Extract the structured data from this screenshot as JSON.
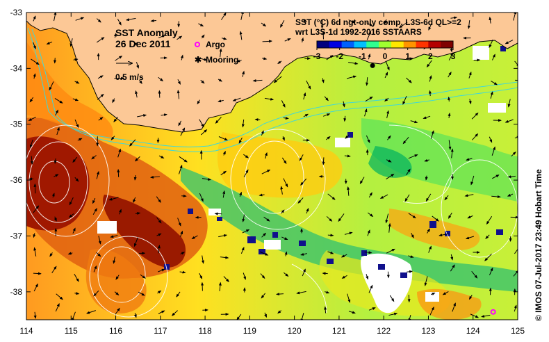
{
  "title": "SST Anomaly",
  "date": "26 Dec 2011",
  "vector_scale_label": "0.5 m/s",
  "legend": {
    "argo_label": "Argo",
    "mooring_label": "Mooring",
    "argo_color": "#ff00ff",
    "mooring_color": "#000000"
  },
  "colorbar": {
    "title_line1": "SST (°C) 6d ngt-only comp, L3S-6d QL>=2",
    "title_line2": "wrt L3S-1d 1992-2016 SSTAARS",
    "min": -3,
    "max": 3,
    "ticks": [
      "-3",
      "-2",
      "-1",
      "0",
      "1",
      "2",
      "3"
    ],
    "colors": [
      "#00007f",
      "#0000e0",
      "#0060ff",
      "#00c0ff",
      "#30ff90",
      "#a0ff30",
      "#ffe800",
      "#ff9400",
      "#ff3300",
      "#b40000",
      "#7f0000"
    ]
  },
  "axes": {
    "lon_ticks": [
      "114",
      "115",
      "116",
      "117",
      "118",
      "119",
      "120",
      "121",
      "122",
      "123",
      "124",
      "125"
    ],
    "lat_ticks": [
      "-33",
      "-34",
      "-35",
      "-36",
      "-37",
      "-38"
    ],
    "lon_range": [
      114,
      125
    ],
    "lat_range": [
      -38.5,
      -33
    ]
  },
  "markers": {
    "argo": [
      [
        124.45,
        -38.36
      ]
    ],
    "mooring": [
      [
        121.75,
        -33.95
      ]
    ]
  },
  "credit": "© IMOS 07-Jul-2017 23:49 Hobart Time",
  "colors": {
    "land": "#fcc896",
    "coast": "#000000",
    "contour": "#ffffff",
    "isobath": "#40d8d8"
  }
}
